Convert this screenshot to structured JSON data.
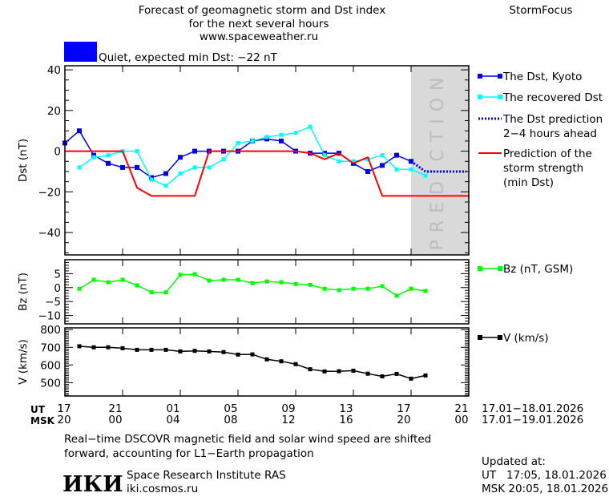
{
  "header": {
    "title_lines": [
      "Forecast of geomagnetic storm and Dst index",
      "for the next several hours",
      "www.spaceweather.ru"
    ],
    "brand": "StormFocus",
    "status_text": "Quiet, expected min Dst: −22 nT",
    "status_color": "#0000ff"
  },
  "colors": {
    "kyoto": "#0000e0",
    "recovered": "#00ffff",
    "prediction": "#0000ff",
    "min_dst": "#ff0000",
    "bz": "#00ff00",
    "v": "#000000",
    "prediction_zone": "#d9d9d9"
  },
  "prediction_label": "PREDICTION",
  "x_axis": {
    "ut_label": "UT",
    "msk_label": "MSK",
    "ut_ticks": [
      "17",
      "21",
      "01",
      "05",
      "09",
      "13",
      "17",
      "21"
    ],
    "msk_ticks": [
      "20",
      "00",
      "04",
      "08",
      "12",
      "16",
      "20",
      "00"
    ],
    "ut_range": "17.01−18.01.2026",
    "msk_range": "17.01−19.01.2026"
  },
  "chart_data": [
    {
      "type": "line",
      "ylabel": "Dst (nT)",
      "ylim": [
        -51,
        42
      ],
      "yticks": [
        40,
        20,
        0,
        -20,
        -40
      ],
      "xlim": [
        "17.01 17:00",
        "18.01 21:00"
      ],
      "prediction_zone_start": "18.01 17:00",
      "series": [
        {
          "name": "The Dst, Kyoto",
          "key": "kyoto",
          "start": "17.01 17:00",
          "step_hours": 1,
          "values": [
            4,
            10,
            -2,
            -6,
            -8,
            -8,
            -13,
            -11,
            -3,
            0,
            0,
            0,
            0,
            5,
            6,
            5,
            0,
            -1,
            -1,
            -1,
            -6,
            -10,
            -7,
            -2,
            -5
          ]
        },
        {
          "name": "The recovered Dst",
          "key": "recovered",
          "start": "17.01 18:00",
          "step_hours": 1,
          "values": [
            -8,
            -3,
            -2,
            0,
            0,
            -14,
            -17,
            -11,
            -8,
            -8,
            -4,
            4,
            5,
            7,
            8,
            9,
            12,
            -2,
            -5,
            -5,
            -4,
            -2,
            -9,
            -9,
            -12
          ]
        },
        {
          "name": "The Dst prediction",
          "name2": "2−4 hours ahead",
          "key": "prediction",
          "points": [
            [
              "18.01 17:00",
              -5
            ],
            [
              "18.01 18:00",
              -10
            ],
            [
              "18.01 20:50",
              -10
            ]
          ]
        },
        {
          "name": "Prediction of the",
          "name2": "storm strength",
          "name3": "(min Dst)",
          "key": "min_dst",
          "points": [
            [
              "17.01 17:00",
              0
            ],
            [
              "17.01 21:00",
              0
            ],
            [
              "17.01 22:00",
              -18
            ],
            [
              "17.01 23:00",
              -22
            ],
            [
              "18.01 02:00",
              -22
            ],
            [
              "18.01 03:00",
              0
            ],
            [
              "18.01 09:00",
              0
            ],
            [
              "18.01 10:00",
              -1
            ],
            [
              "18.01 11:00",
              -4
            ],
            [
              "18.01 12:00",
              -1
            ],
            [
              "18.01 13:00",
              -6
            ],
            [
              "18.01 14:00",
              -3
            ],
            [
              "18.01 15:00",
              -22
            ],
            [
              "18.01 21:00",
              -22
            ]
          ]
        }
      ]
    },
    {
      "type": "line",
      "ylabel": "Bz (nT)",
      "ylim": [
        -13,
        10
      ],
      "yticks": [
        5,
        0,
        -5,
        -10
      ],
      "series": [
        {
          "name": "Bz (nT, GSM)",
          "key": "bz",
          "start": "17.01 18:00",
          "step_hours": 1,
          "values": [
            -0.4,
            2.8,
            1.9,
            2.8,
            0.8,
            -1.7,
            -1.7,
            4.6,
            4.8,
            2.5,
            2.8,
            2.8,
            1.6,
            2.2,
            1.9,
            1.3,
            1.0,
            -0.4,
            -0.9,
            -0.4,
            -0.4,
            0.5,
            -2.9,
            -0.4,
            -1.2
          ]
        }
      ]
    },
    {
      "type": "line",
      "ylabel": "V (km/s)",
      "ylim": [
        425,
        810
      ],
      "yticks": [
        800,
        700,
        600,
        500
      ],
      "series": [
        {
          "name": "V (km/s)",
          "key": "v",
          "start": "17.01 18:00",
          "step_hours": 1,
          "values": [
            706,
            700,
            700,
            695,
            686,
            686,
            686,
            677,
            680,
            677,
            673,
            659,
            660,
            632,
            621,
            605,
            576,
            564,
            565,
            568,
            551,
            536,
            550,
            523,
            541
          ]
        }
      ]
    }
  ],
  "footer": {
    "note_lines": [
      "Real−time DSCOVR magnetic field and solar wind speed are shifted",
      "forward, accounting for L1−Earth propagation"
    ],
    "logo": "ИКИ",
    "institute": "Space Research Institute RAS",
    "site": "iki.cosmos.ru",
    "updated_label": "Updated at:",
    "updated_ut": "UT   17:05, 18.01.2026",
    "updated_msk": "MSK 20:05, 18.01.2026"
  }
}
